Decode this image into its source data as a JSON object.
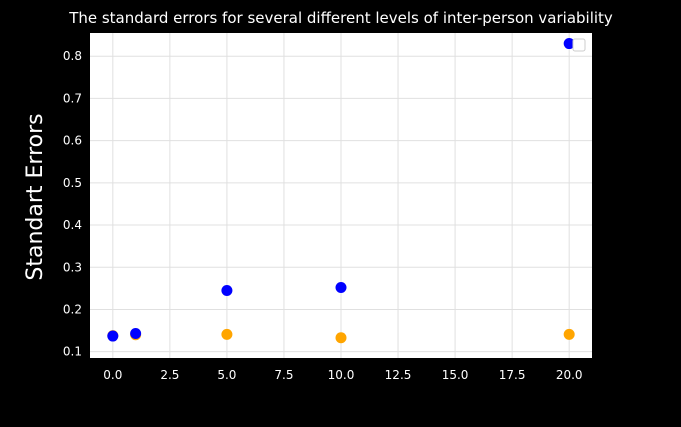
{
  "chart_data": {
    "type": "scatter",
    "title": "The standard errors for several different levels of inter-person variability",
    "xlabel": "",
    "ylabel": "Standart Errors",
    "xlim": [
      -1.0,
      21.0
    ],
    "ylim": [
      0.085,
      0.855
    ],
    "xticks": [
      0.0,
      2.5,
      5.0,
      7.5,
      10.0,
      12.5,
      15.0,
      17.5,
      20.0
    ],
    "xtick_labels": [
      "0.0",
      "2.5",
      "5.0",
      "7.5",
      "10.0",
      "12.5",
      "15.0",
      "17.5",
      "20.0"
    ],
    "yticks": [
      0.1,
      0.2,
      0.3,
      0.4,
      0.5,
      0.6,
      0.7,
      0.8
    ],
    "ytick_labels": [
      "0.1",
      "0.2",
      "0.3",
      "0.4",
      "0.5",
      "0.6",
      "0.7",
      "0.8"
    ],
    "grid": true,
    "legend": "top-right (empty)",
    "series": [
      {
        "color": "#ffa500",
        "x": [
          0,
          1,
          5,
          10,
          20
        ],
        "y": [
          0.138,
          0.14,
          0.141,
          0.133,
          0.141
        ]
      },
      {
        "color": "#0000ff",
        "x": [
          0,
          1,
          5,
          10,
          20
        ],
        "y": [
          0.137,
          0.143,
          0.245,
          0.252,
          0.83
        ]
      }
    ]
  },
  "colors": {
    "background": "#000000",
    "plot_area": "#ffffff",
    "grid": "#e0e0e0",
    "text": "#ffffff"
  }
}
